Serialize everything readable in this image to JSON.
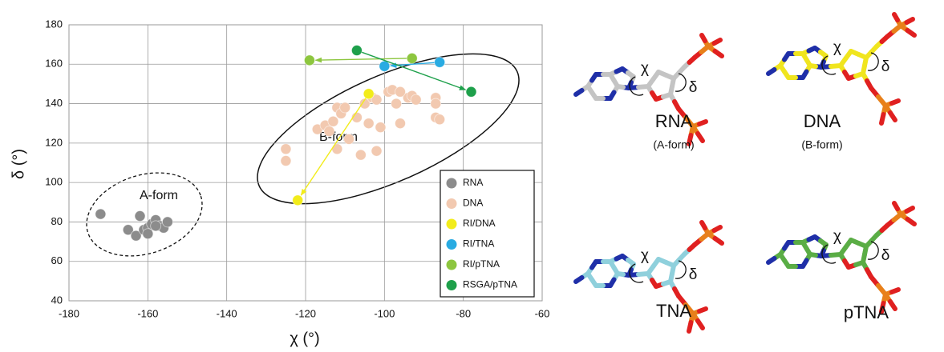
{
  "chart_data": {
    "type": "scatter",
    "xlabel": "χ (°)",
    "ylabel": "δ (°)",
    "xlim": [
      -180,
      -60
    ],
    "xticks": [
      -180,
      -160,
      -140,
      -120,
      -100,
      -80,
      -60
    ],
    "ylim": [
      40,
      180
    ],
    "yticks": [
      40,
      60,
      80,
      100,
      120,
      140,
      160,
      180
    ],
    "grid": true,
    "legend": "lower right",
    "annotations": [
      "A-form",
      "B-form"
    ],
    "series": [
      {
        "name": "RNA",
        "color": "#8c8c8c",
        "x": [
          -172,
          -165,
          -163,
          -162,
          -161,
          -160,
          -159,
          -158,
          -157,
          -156,
          -155,
          -160,
          -158
        ],
        "y": [
          84,
          76,
          73,
          83,
          76,
          77,
          79,
          81,
          78,
          77,
          80,
          74,
          78
        ]
      },
      {
        "name": "DNA",
        "color": "#f2c9b0",
        "x": [
          -125,
          -125,
          -117,
          -115,
          -114,
          -113,
          -112,
          -111,
          -110,
          -112,
          -107,
          -105,
          -104,
          -103,
          -102,
          -101,
          -102,
          -106,
          -99,
          -98,
          -97,
          -96,
          -94,
          -93,
          -92,
          -87,
          -87,
          -86,
          -87,
          -96,
          -109
        ],
        "y": [
          117,
          111,
          127,
          129,
          126,
          131,
          138,
          135,
          138,
          117,
          133,
          140,
          130,
          143,
          142,
          128,
          116,
          114,
          146,
          147,
          140,
          130,
          143,
          144,
          142,
          143,
          133,
          132,
          140,
          146,
          122
        ]
      },
      {
        "name": "RI/DNA",
        "color": "#f2ec1b",
        "arrow": true,
        "x": [
          -104,
          -122
        ],
        "y": [
          145,
          91
        ]
      },
      {
        "name": "RI/TNA",
        "color": "#29abe2",
        "arrow": true,
        "x": [
          -86,
          -100
        ],
        "y": [
          161,
          159
        ]
      },
      {
        "name": "RI/pTNA",
        "color": "#8dc63f",
        "arrow": true,
        "x": [
          -93,
          -119
        ],
        "y": [
          163,
          162
        ]
      },
      {
        "name": "RSGA/pTNA",
        "color": "#1ea04b",
        "arrow": true,
        "x": [
          -107,
          -78
        ],
        "y": [
          167,
          146
        ]
      }
    ]
  },
  "structures": [
    {
      "name": "RNA",
      "form": "(A-form)",
      "carbon_color": "#c4c4c4",
      "torsions": [
        "χ",
        "δ"
      ]
    },
    {
      "name": "DNA",
      "form": "(B-form)",
      "carbon_color": "#f0e51e",
      "torsions": [
        "χ",
        "δ"
      ]
    },
    {
      "name": "TNA",
      "carbon_color": "#8fd0dc",
      "torsions": [
        "χ",
        "δ"
      ]
    },
    {
      "name": "pTNA",
      "carbon_color": "#5aad45",
      "torsions": [
        "χ",
        "δ"
      ]
    }
  ]
}
